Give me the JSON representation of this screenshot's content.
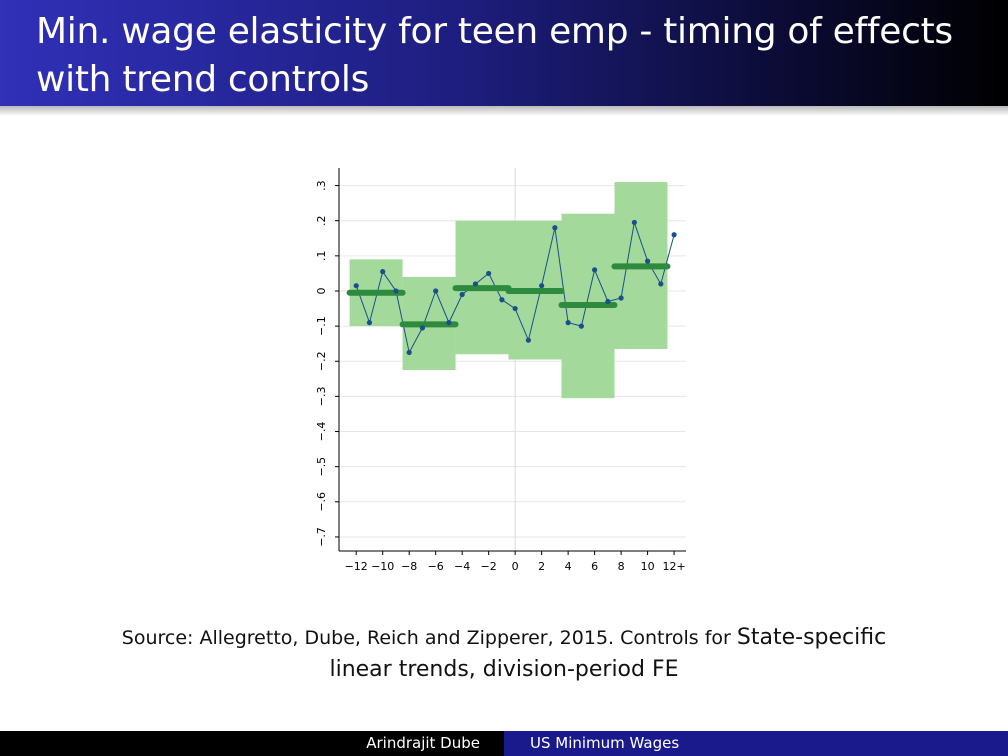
{
  "slide": {
    "title": "Min. wage elasticity for teen emp - timing of effects with trend controls",
    "caption_part1": "Source: Allegretto, Dube, Reich and Zipperer, 2015. Controls for ",
    "caption_part2": "State-specific",
    "caption_part3": "linear trends, division-period FE"
  },
  "footer": {
    "author": "Arindrajit Dube",
    "short_title": "US Minimum Wages"
  },
  "colors": {
    "ci_box": "#a3d99b",
    "bar": "#2e8b3e",
    "line": "#1a4f8b",
    "grid": "#e6e6e6",
    "axis": "#000000"
  },
  "chart_data": {
    "type": "line",
    "title": "",
    "xlabel": "",
    "ylabel": "",
    "xlim": [
      -13.3,
      12.9
    ],
    "ylim": [
      -0.74,
      0.35
    ],
    "x_ticks": [
      -12,
      -10,
      -8,
      -6,
      -4,
      -2,
      0,
      2,
      4,
      6,
      8,
      10,
      12
    ],
    "x_tick_labels": [
      "−12",
      "−10",
      "−8",
      "−6",
      "−4",
      "−2",
      "0",
      "2",
      "4",
      "6",
      "8",
      "10",
      "12+"
    ],
    "y_ticks": [
      -0.7,
      -0.6,
      -0.5,
      -0.4,
      -0.3,
      -0.2,
      -0.1,
      0,
      0.1,
      0.2,
      0.3
    ],
    "y_tick_labels": [
      "−.7",
      "−.6",
      "−.5",
      "−.4",
      "−.3",
      "−.2",
      "−.1",
      "0",
      ".1",
      ".2",
      ".3"
    ],
    "vertical_reference_line": 0,
    "grid": true,
    "series": [
      {
        "x": [
          -12,
          -11,
          -10,
          -9,
          -8,
          -7,
          -6,
          -5,
          -4,
          -3,
          -2,
          -1,
          0,
          1,
          2,
          3,
          4,
          5,
          6,
          7,
          8,
          9,
          10,
          11,
          12
        ],
        "values": [
          0.015,
          -0.09,
          0.055,
          0.0,
          -0.175,
          -0.105,
          0.0,
          -0.09,
          -0.01,
          0.02,
          0.05,
          -0.025,
          -0.05,
          -0.14,
          0.015,
          0.18,
          -0.09,
          -0.1,
          0.06,
          -0.03,
          -0.02,
          0.195,
          0.085,
          0.02,
          0.16
        ]
      }
    ],
    "period_estimates": [
      {
        "x_start": -12,
        "x_end": -9,
        "estimate": -0.005,
        "ci_low": -0.1,
        "ci_high": 0.09
      },
      {
        "x_start": -8,
        "x_end": -5,
        "estimate": -0.095,
        "ci_low": -0.225,
        "ci_high": 0.04
      },
      {
        "x_start": -4,
        "x_end": -1,
        "estimate": 0.008,
        "ci_low": -0.18,
        "ci_high": 0.2
      },
      {
        "x_start": 0,
        "x_end": 3,
        "estimate": 0.0,
        "ci_low": -0.195,
        "ci_high": 0.2
      },
      {
        "x_start": 4,
        "x_end": 7,
        "estimate": -0.04,
        "ci_low": -0.305,
        "ci_high": 0.22
      },
      {
        "x_start": 8,
        "x_end": 11,
        "estimate": 0.07,
        "ci_low": -0.165,
        "ci_high": 0.31
      }
    ]
  }
}
